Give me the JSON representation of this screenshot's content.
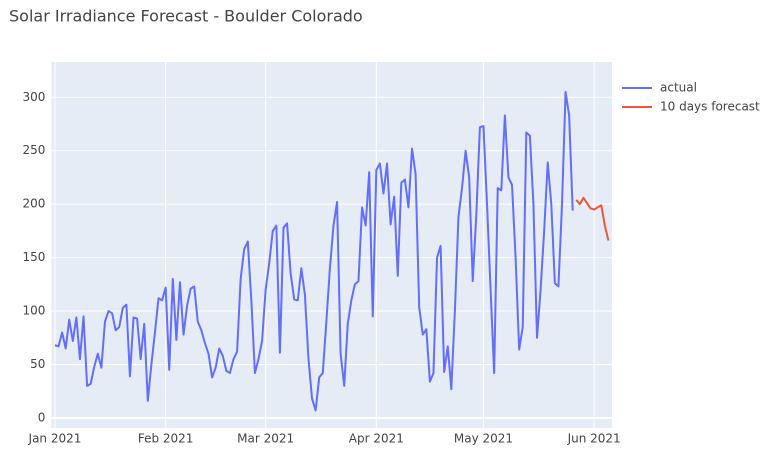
{
  "chart_data": {
    "type": "line",
    "title": "Solar Irradiance Forecast - Boulder Colorado",
    "xlim": [
      -1,
      156
    ],
    "xticks": [
      {
        "value": 0,
        "label": "Jan 2021"
      },
      {
        "value": 31,
        "label": "Feb 2021"
      },
      {
        "value": 59,
        "label": "Mar 2021"
      },
      {
        "value": 90,
        "label": "Apr 2021"
      },
      {
        "value": 120,
        "label": "May 2021"
      },
      {
        "value": 151,
        "label": "Jun 2021"
      }
    ],
    "ylim": [
      -9.4,
      333
    ],
    "yticks": [
      0,
      50,
      100,
      150,
      200,
      250,
      300
    ],
    "grid": true,
    "legend": "right",
    "series": [
      {
        "name": "actual",
        "color": "#636efa",
        "x": [
          0,
          1,
          2,
          3,
          4,
          5,
          6,
          7,
          8,
          9,
          10,
          11,
          12,
          13,
          14,
          15,
          16,
          17,
          18,
          19,
          20,
          21,
          22,
          23,
          24,
          25,
          26,
          27,
          28,
          29,
          30,
          31,
          32,
          33,
          34,
          35,
          36,
          37,
          38,
          39,
          40,
          41,
          42,
          43,
          44,
          45,
          46,
          47,
          48,
          49,
          50,
          51,
          52,
          53,
          54,
          55,
          56,
          57,
          58,
          59,
          60,
          61,
          62,
          63,
          64,
          65,
          66,
          67,
          68,
          69,
          70,
          71,
          72,
          73,
          74,
          75,
          76,
          77,
          78,
          79,
          80,
          81,
          82,
          83,
          84,
          85,
          86,
          87,
          88,
          89,
          90,
          91,
          92,
          93,
          94,
          95,
          96,
          97,
          98,
          99,
          100,
          101,
          102,
          103,
          104,
          105,
          106,
          107,
          108,
          109,
          110,
          111,
          112,
          113,
          114,
          115,
          116,
          117,
          118,
          119,
          120,
          121,
          122,
          123,
          124,
          125,
          126,
          127,
          128,
          129,
          130,
          131,
          132,
          133,
          134,
          135,
          136,
          137,
          138,
          139,
          140,
          141,
          142,
          143,
          144,
          145
        ],
        "values": [
          68,
          67,
          80,
          65,
          92,
          72,
          94,
          55,
          95,
          30,
          32,
          48,
          60,
          47,
          90,
          100,
          98,
          82,
          85,
          103,
          106,
          39,
          94,
          93,
          55,
          88,
          16,
          50,
          80,
          112,
          110,
          122,
          45,
          130,
          73,
          127,
          78,
          105,
          121,
          123,
          90,
          82,
          70,
          60,
          38,
          47,
          65,
          58,
          44,
          42,
          55,
          62,
          130,
          158,
          165,
          110,
          42,
          55,
          72,
          120,
          145,
          175,
          180,
          61,
          178,
          182,
          135,
          111,
          110,
          140,
          115,
          55,
          18,
          7,
          38,
          42,
          90,
          140,
          180,
          202,
          60,
          30,
          88,
          110,
          125,
          128,
          197,
          180,
          230,
          95,
          232,
          238,
          210,
          238,
          181,
          207,
          133,
          220,
          223,
          197,
          252,
          228,
          104,
          78,
          83,
          34,
          42,
          150,
          161,
          43,
          67,
          27,
          100,
          188,
          215,
          250,
          225,
          128,
          190,
          272,
          273,
          200,
          120,
          42,
          215,
          213,
          283,
          225,
          218,
          150,
          64,
          85,
          267,
          264,
          200,
          75,
          120,
          175,
          239,
          200,
          126,
          123,
          200,
          305,
          283,
          194
        ]
      },
      {
        "name": "10 days forecast",
        "color": "#ef553b",
        "x": [
          146,
          147,
          148,
          149,
          150,
          151,
          152,
          153,
          154,
          155
        ],
        "values": [
          204,
          200,
          206,
          201,
          196,
          195,
          197,
          199,
          180,
          166
        ]
      }
    ]
  }
}
